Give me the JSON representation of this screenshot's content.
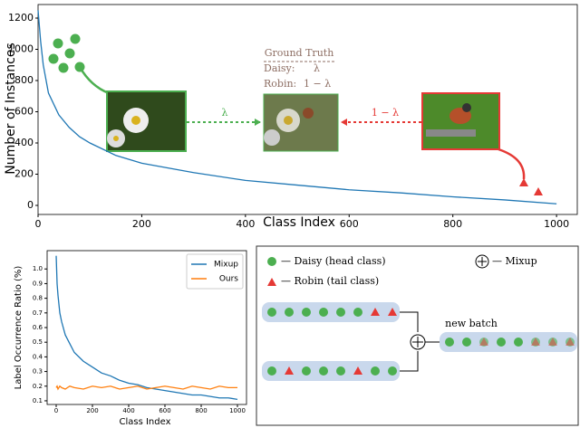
{
  "chart_data": [
    {
      "type": "line",
      "xlabel": "Class Index",
      "ylabel": "Number of Instances",
      "x": [
        0,
        5,
        10,
        20,
        40,
        60,
        80,
        100,
        150,
        200,
        300,
        400,
        500,
        600,
        700,
        800,
        900,
        1000
      ],
      "series": [
        {
          "name": "Instances",
          "color": "#1f77b4",
          "values": [
            1250,
            1050,
            900,
            720,
            580,
            500,
            440,
            400,
            320,
            270,
            210,
            160,
            130,
            100,
            80,
            55,
            35,
            10
          ]
        }
      ],
      "xlim": [
        0,
        1040
      ],
      "ylim": [
        -58,
        1287
      ],
      "xticks": [
        0,
        200,
        400,
        600,
        800,
        1000
      ],
      "yticks": [
        0,
        200,
        400,
        600,
        800,
        1000,
        1200
      ],
      "annotations": [
        "Ground Truth",
        "Daisy:",
        "λ",
        "Robin:",
        "1 − λ",
        "λ",
        "1 − λ"
      ]
    },
    {
      "type": "line",
      "xlabel": "Class Index",
      "ylabel": "Label Occurrence Ratio (%)",
      "x": [
        0,
        5,
        10,
        20,
        30,
        50,
        75,
        100,
        150,
        200,
        250,
        300,
        350,
        400,
        450,
        500,
        550,
        600,
        650,
        700,
        750,
        800,
        850,
        900,
        950,
        1000
      ],
      "series": [
        {
          "name": "Mixup",
          "color": "#1f77b4",
          "values": [
            1.09,
            0.9,
            0.82,
            0.7,
            0.64,
            0.55,
            0.49,
            0.43,
            0.37,
            0.33,
            0.29,
            0.27,
            0.24,
            0.22,
            0.21,
            0.19,
            0.18,
            0.17,
            0.16,
            0.15,
            0.14,
            0.14,
            0.13,
            0.12,
            0.12,
            0.11
          ]
        },
        {
          "name": "Ours",
          "color": "#ff7f0e",
          "values": [
            0.19,
            0.2,
            0.18,
            0.2,
            0.19,
            0.18,
            0.2,
            0.19,
            0.18,
            0.2,
            0.19,
            0.2,
            0.18,
            0.19,
            0.2,
            0.18,
            0.19,
            0.2,
            0.19,
            0.18,
            0.2,
            0.19,
            0.18,
            0.2,
            0.19,
            0.19
          ]
        }
      ],
      "xlim": [
        -50,
        1050
      ],
      "ylim": [
        0.075,
        1.125
      ],
      "xticks": [
        0,
        200,
        400,
        600,
        800,
        1000
      ],
      "yticks": [
        0.1,
        0.2,
        0.3,
        0.4,
        0.5,
        0.6,
        0.7,
        0.8,
        0.9,
        {
          "value": 1,
          "label": "1.0"
        }
      ],
      "legend": "upper right"
    }
  ],
  "diagram": {
    "legend": [
      "— Daisy (head class)",
      "— Robin (tail class)",
      "— Mixup"
    ],
    "new_batch": "new batch"
  }
}
